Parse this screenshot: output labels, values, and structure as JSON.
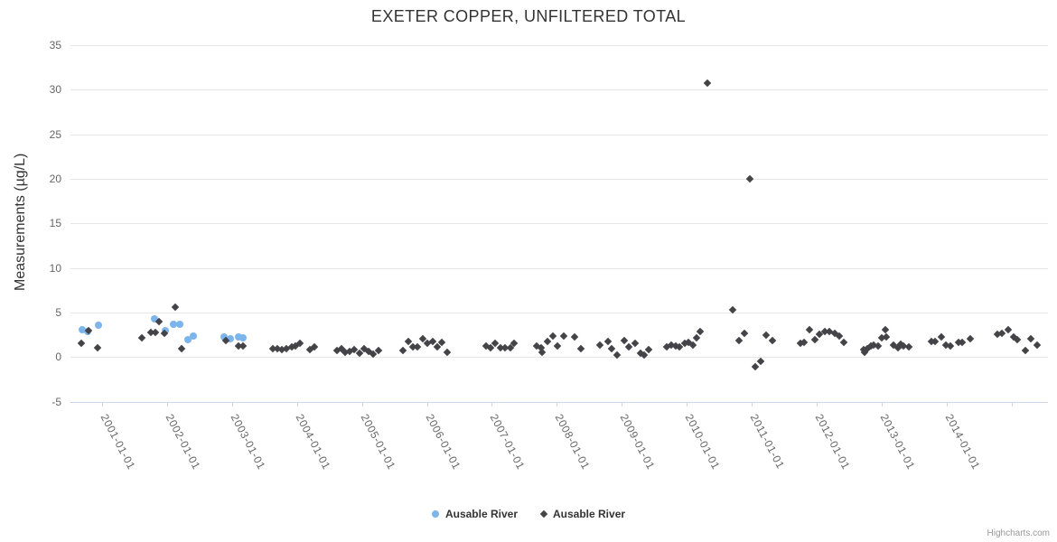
{
  "title": "EXETER COPPER, UNFILTERED TOTAL",
  "credit": "Highcharts.com",
  "colors": {
    "series_blue": "#7cb5ec",
    "series_dark": "#434348",
    "gridline": "#e6e6e6",
    "axis_line": "#ccd6eb",
    "label_gray": "#666666",
    "text_dark": "#333333",
    "credit_gray": "#999999"
  },
  "chart_data": {
    "type": "scatter",
    "title": "EXETER COPPER, UNFILTERED TOTAL",
    "xlabel": "",
    "ylabel": "Measurements (µg/L)",
    "ylim": [
      -5,
      35
    ],
    "y_ticks": [
      -5,
      0,
      5,
      10,
      15,
      20,
      25,
      30,
      35
    ],
    "grid": "horizontal-only",
    "legend_position": "bottom-center",
    "x_ticks": [
      {
        "year": 2001,
        "label": "2001-01-01"
      },
      {
        "year": 2002,
        "label": "2002-01-01"
      },
      {
        "year": 2003,
        "label": "2003-01-01"
      },
      {
        "year": 2004,
        "label": "2004-01-01"
      },
      {
        "year": 2005,
        "label": "2005-01-01"
      },
      {
        "year": 2006,
        "label": "2006-01-01"
      },
      {
        "year": 2007,
        "label": "2007-01-01"
      },
      {
        "year": 2008,
        "label": "2008-01-01"
      },
      {
        "year": 2009,
        "label": "2009-01-01"
      },
      {
        "year": 2010,
        "label": "2010-01-01"
      },
      {
        "year": 2011,
        "label": "2011-01-01"
      },
      {
        "year": 2012,
        "label": "2012-01-01"
      },
      {
        "year": 2013,
        "label": "2013-01-01"
      },
      {
        "year": 2014,
        "label": "2014-01-01"
      },
      {
        "year": 2015,
        "label": ""
      }
    ],
    "series": [
      {
        "name": "Ausable River",
        "marker": "circle",
        "color": "#7cb5ec",
        "points": [
          [
            2000.69,
            3.1
          ],
          [
            2000.78,
            2.9
          ],
          [
            2000.94,
            3.6
          ],
          [
            2001.81,
            4.3
          ],
          [
            2001.97,
            3.0
          ],
          [
            2002.1,
            3.7
          ],
          [
            2002.2,
            3.7
          ],
          [
            2002.32,
            2.0
          ],
          [
            2002.4,
            2.4
          ],
          [
            2002.87,
            2.3
          ],
          [
            2002.97,
            2.1
          ],
          [
            2003.1,
            2.3
          ],
          [
            2003.17,
            2.2
          ]
        ]
      },
      {
        "name": "Ausable River",
        "marker": "diamond",
        "color": "#434348",
        "points": [
          [
            2000.68,
            1.6
          ],
          [
            2000.79,
            3.0
          ],
          [
            2000.93,
            1.0
          ],
          [
            2001.61,
            2.2
          ],
          [
            2001.75,
            2.8
          ],
          [
            2001.82,
            2.8
          ],
          [
            2001.88,
            4.0
          ],
          [
            2001.96,
            2.7
          ],
          [
            2002.13,
            5.6
          ],
          [
            2002.22,
            0.9
          ],
          [
            2002.9,
            1.9
          ],
          [
            2003.1,
            1.3
          ],
          [
            2003.17,
            1.3
          ],
          [
            2003.63,
            0.9
          ],
          [
            2003.7,
            0.9
          ],
          [
            2003.77,
            0.8
          ],
          [
            2003.84,
            0.9
          ],
          [
            2003.92,
            1.1
          ],
          [
            2003.98,
            1.3
          ],
          [
            2004.05,
            1.6
          ],
          [
            2004.2,
            0.8
          ],
          [
            2004.27,
            1.2
          ],
          [
            2004.62,
            0.7
          ],
          [
            2004.69,
            0.9
          ],
          [
            2004.74,
            0.5
          ],
          [
            2004.81,
            0.6
          ],
          [
            2004.88,
            0.8
          ],
          [
            2004.96,
            0.4
          ],
          [
            2005.03,
            0.9
          ],
          [
            2005.1,
            0.6
          ],
          [
            2005.17,
            0.3
          ],
          [
            2005.26,
            0.7
          ],
          [
            2005.63,
            0.7
          ],
          [
            2005.72,
            1.8
          ],
          [
            2005.78,
            1.2
          ],
          [
            2005.85,
            1.1
          ],
          [
            2005.94,
            2.1
          ],
          [
            2006.01,
            1.6
          ],
          [
            2006.09,
            1.8
          ],
          [
            2006.16,
            1.2
          ],
          [
            2006.23,
            1.7
          ],
          [
            2006.31,
            0.5
          ],
          [
            2006.91,
            1.3
          ],
          [
            2006.98,
            1.0
          ],
          [
            2007.05,
            1.6
          ],
          [
            2007.13,
            1.0
          ],
          [
            2007.2,
            1.0
          ],
          [
            2007.29,
            1.0
          ],
          [
            2007.34,
            1.6
          ],
          [
            2007.69,
            1.3
          ],
          [
            2007.76,
            1.0
          ],
          [
            2007.77,
            0.5
          ],
          [
            2007.86,
            1.8
          ],
          [
            2007.94,
            2.4
          ],
          [
            2008.01,
            1.3
          ],
          [
            2008.11,
            2.4
          ],
          [
            2008.27,
            2.3
          ],
          [
            2008.37,
            0.9
          ],
          [
            2008.66,
            1.4
          ],
          [
            2008.79,
            1.8
          ],
          [
            2008.84,
            0.9
          ],
          [
            2008.93,
            0.2
          ],
          [
            2009.04,
            1.9
          ],
          [
            2009.11,
            1.2
          ],
          [
            2009.21,
            1.6
          ],
          [
            2009.29,
            0.4
          ],
          [
            2009.35,
            0.2
          ],
          [
            2009.41,
            0.8
          ],
          [
            2009.69,
            1.2
          ],
          [
            2009.76,
            1.4
          ],
          [
            2009.83,
            1.3
          ],
          [
            2009.89,
            1.2
          ],
          [
            2009.97,
            1.6
          ],
          [
            2010.03,
            1.7
          ],
          [
            2010.1,
            1.4
          ],
          [
            2010.15,
            2.2
          ],
          [
            2010.21,
            2.9
          ],
          [
            2010.32,
            30.7
          ],
          [
            2010.71,
            5.3
          ],
          [
            2010.81,
            1.9
          ],
          [
            2010.89,
            2.7
          ],
          [
            2010.97,
            20.0
          ],
          [
            2011.06,
            -1.1
          ],
          [
            2011.14,
            -0.5
          ],
          [
            2011.22,
            2.5
          ],
          [
            2011.32,
            1.9
          ],
          [
            2011.75,
            1.6
          ],
          [
            2011.81,
            1.7
          ],
          [
            2011.89,
            3.1
          ],
          [
            2011.97,
            2.0
          ],
          [
            2012.04,
            2.6
          ],
          [
            2012.13,
            2.9
          ],
          [
            2012.2,
            2.9
          ],
          [
            2012.28,
            2.7
          ],
          [
            2012.35,
            2.4
          ],
          [
            2012.42,
            1.7
          ],
          [
            2012.72,
            0.8
          ],
          [
            2012.74,
            0.5
          ],
          [
            2012.78,
            0.9
          ],
          [
            2012.84,
            1.3
          ],
          [
            2012.88,
            1.4
          ],
          [
            2012.95,
            1.3
          ],
          [
            2013.0,
            2.2
          ],
          [
            2013.06,
            3.1
          ],
          [
            2013.07,
            2.3
          ],
          [
            2013.18,
            1.4
          ],
          [
            2013.25,
            1.0
          ],
          [
            2013.29,
            1.5
          ],
          [
            2013.34,
            1.3
          ],
          [
            2013.42,
            1.2
          ],
          [
            2013.77,
            1.8
          ],
          [
            2013.82,
            1.8
          ],
          [
            2013.92,
            2.3
          ],
          [
            2013.99,
            1.4
          ],
          [
            2014.06,
            1.3
          ],
          [
            2014.18,
            1.7
          ],
          [
            2014.24,
            1.7
          ],
          [
            2014.37,
            2.1
          ],
          [
            2014.78,
            2.6
          ],
          [
            2014.85,
            2.7
          ],
          [
            2014.95,
            3.1
          ],
          [
            2015.03,
            2.3
          ],
          [
            2015.09,
            2.0
          ],
          [
            2015.22,
            0.7
          ],
          [
            2015.29,
            2.1
          ],
          [
            2015.4,
            1.4
          ]
        ]
      }
    ]
  }
}
